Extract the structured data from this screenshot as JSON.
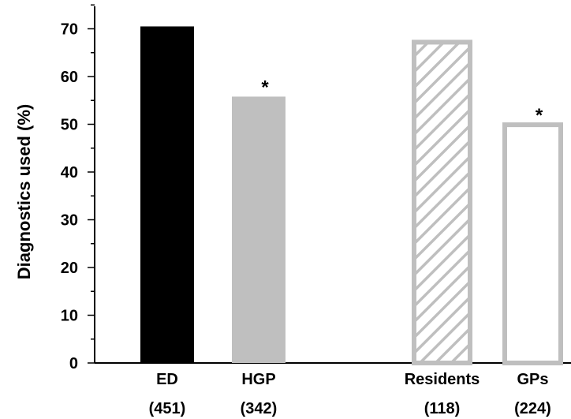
{
  "chart_data": {
    "type": "bar",
    "ylabel": "Diagnostics used (%)",
    "xlabel": "",
    "ylim": [
      0,
      75
    ],
    "yticks": [
      0,
      10,
      20,
      30,
      40,
      50,
      60,
      70
    ],
    "grid": false,
    "categories": [
      {
        "name": "ED",
        "count": "(451)",
        "value": 70.5,
        "fill": "#000000",
        "stroke": "none",
        "pattern": "solid",
        "annotation": ""
      },
      {
        "name": "HGP",
        "count": "(342)",
        "value": 55.8,
        "fill": "#bfbfbf",
        "stroke": "none",
        "pattern": "solid",
        "annotation": "*"
      },
      {
        "name": "Residents",
        "count": "(118)",
        "value": 67.2,
        "fill": "#ffffff",
        "stroke": "#bfbfbf",
        "pattern": "hatched",
        "annotation": ""
      },
      {
        "name": "GPs",
        "count": "(224)",
        "value": 49.9,
        "fill": "#ffffff",
        "stroke": "#bfbfbf",
        "pattern": "outline",
        "annotation": "*"
      }
    ]
  }
}
